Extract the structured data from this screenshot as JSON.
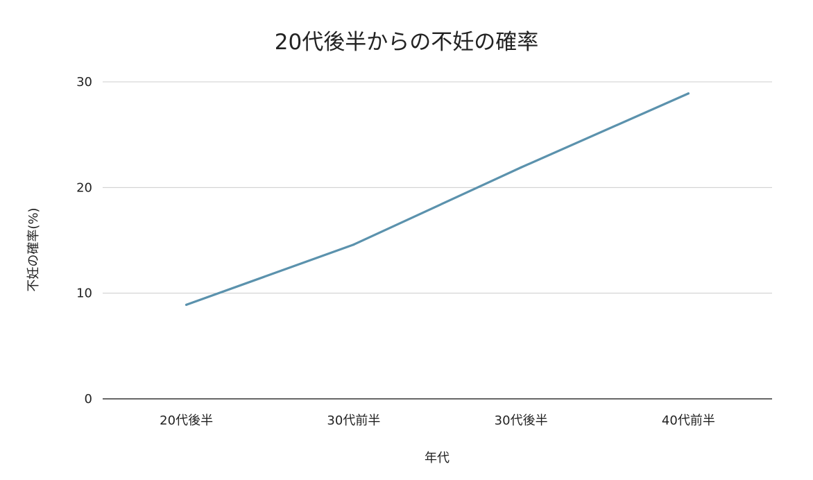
{
  "chart_data": {
    "type": "line",
    "title": "20代後半からの不妊の確率",
    "xlabel": "年代",
    "ylabel": "不妊の確率(%)",
    "categories": [
      "20代後半",
      "30代前半",
      "30代後半",
      "40代前半"
    ],
    "series": [
      {
        "values": [
          8.9,
          14.6,
          21.9,
          28.9
        ]
      }
    ],
    "ylim": [
      0,
      30
    ],
    "yticks": [
      0,
      10,
      20,
      30
    ],
    "grid": true,
    "legend": "none",
    "colors": {
      "line": "#5b92ad",
      "grid": "#cccccc",
      "baseline": "#333333"
    }
  }
}
